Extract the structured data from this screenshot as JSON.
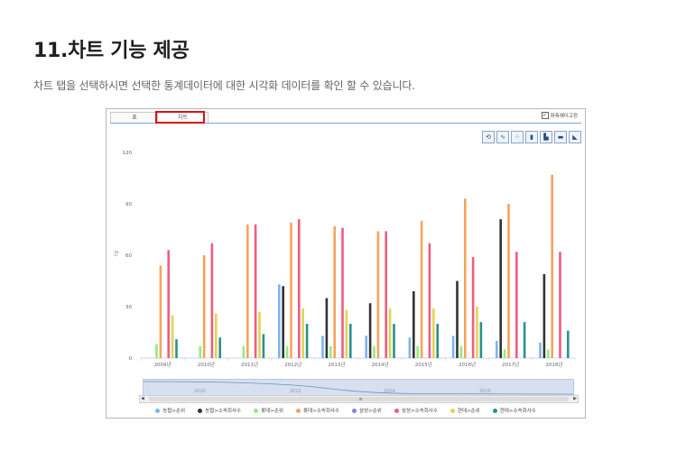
{
  "page": {
    "heading": "11.차트 기능 제공",
    "description": "차트 탭을 선택하시면 선택한 통계데이터에 대한 시각화 데이터를 확인 할 수 있습니다."
  },
  "panel": {
    "tabs": [
      "표",
      "차트"
    ],
    "active_tab": "차트",
    "fix_header_label": "좌측헤더고정",
    "fix_header_checked": true,
    "toolbar_icons": [
      "refresh-icon",
      "line-chart-icon",
      "scatter-chart-icon",
      "bar-chart-icon",
      "stacked-bar-icon",
      "horizontal-bar-icon",
      "area-chart-icon"
    ],
    "navigator_labels": [
      "2010",
      "2012",
      "2014",
      "2016"
    ]
  },
  "colors": {
    "highlight": "#d9121b",
    "tab_border": "#7ea6cf"
  },
  "chart_data": {
    "type": "bar",
    "ylabel": "건",
    "ylim": [
      0,
      120
    ],
    "yticks": [
      0,
      30,
      60,
      90,
      120
    ],
    "categories": [
      "2009년",
      "2010년",
      "2011년",
      "2012년",
      "2013년",
      "2014년",
      "2015년",
      "2016년",
      "2017년",
      "2018년"
    ],
    "series": [
      {
        "name": "농협>순위",
        "color": "#7cb5ec",
        "values": [
          0,
          0,
          0,
          43,
          13,
          13,
          12,
          13,
          10,
          9
        ]
      },
      {
        "name": "농협>소속회사수",
        "color": "#333333",
        "values": [
          0,
          0,
          0,
          42,
          35,
          32,
          39,
          45,
          81,
          49
        ]
      },
      {
        "name": "롯데>순위",
        "color": "#90ed7d",
        "values": [
          8,
          7,
          7,
          7,
          7,
          7,
          7,
          7,
          5,
          5
        ]
      },
      {
        "name": "롯데>소속회사수",
        "color": "#f7a35c",
        "values": [
          54,
          60,
          78,
          79,
          77,
          74,
          80,
          93,
          90,
          107
        ]
      },
      {
        "name": "삼성>순위",
        "color": "#8085e9",
        "values": [
          0,
          0,
          0,
          0,
          0,
          0,
          0,
          0,
          0,
          0
        ]
      },
      {
        "name": "삼성>소속회사수",
        "color": "#f15c80",
        "values": [
          63,
          67,
          78,
          81,
          76,
          74,
          67,
          59,
          62,
          62
        ]
      },
      {
        "name": "현대>순위",
        "color": "#e4d354",
        "values": [
          25,
          26,
          27,
          29,
          28,
          29,
          29,
          30,
          0,
          0
        ]
      },
      {
        "name": "현대>소속회사수",
        "color": "#2b908f",
        "values": [
          11,
          12,
          14,
          20,
          20,
          20,
          20,
          21,
          21,
          16
        ]
      }
    ],
    "legend_position": "bottom",
    "grid": false
  }
}
